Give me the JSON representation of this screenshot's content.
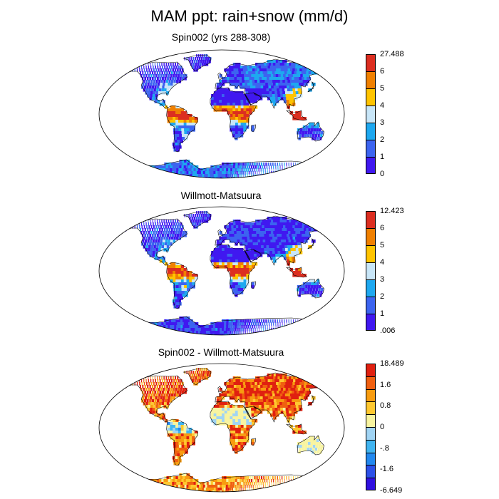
{
  "figure": {
    "title": "MAM ppt: rain+snow (mm/d)"
  },
  "panels": [
    {
      "title": "Spin002 (yrs 288-308)",
      "palette": [
        "#4018f0",
        "#3c64f0",
        "#1ea8f0",
        "#c8e6f8",
        "#ffc400",
        "#f08000",
        "#dc2e20"
      ],
      "labels": [
        "0",
        "1",
        "2",
        "3",
        "4",
        "5",
        "6",
        "27.488"
      ],
      "pattern": "abs",
      "seed": 11
    },
    {
      "title": "Willmott-Matsuura",
      "palette": [
        "#4018f0",
        "#3c64f0",
        "#1ea8f0",
        "#c8e6f8",
        "#ffc400",
        "#f08000",
        "#dc2e20"
      ],
      "labels": [
        ".006",
        "1",
        "2",
        "3",
        "4",
        "5",
        "6",
        "12.423"
      ],
      "pattern": "obs",
      "seed": 23
    },
    {
      "title": "Spin002 - Willmott-Matsuura",
      "palette": [
        "#3010e0",
        "#2c50e8",
        "#2288ee",
        "#40b4f0",
        "#a0d4f4",
        "#f8f4a0",
        "#ffc830",
        "#f89c10",
        "#f06010",
        "#e02010"
      ],
      "labels": [
        "-6.649",
        "",
        "-1.6",
        "",
        "-.8",
        "",
        "0",
        "",
        "0.8",
        "",
        "1.6",
        "",
        "18.489"
      ],
      "pattern": "diff",
      "seed": 37
    }
  ]
}
